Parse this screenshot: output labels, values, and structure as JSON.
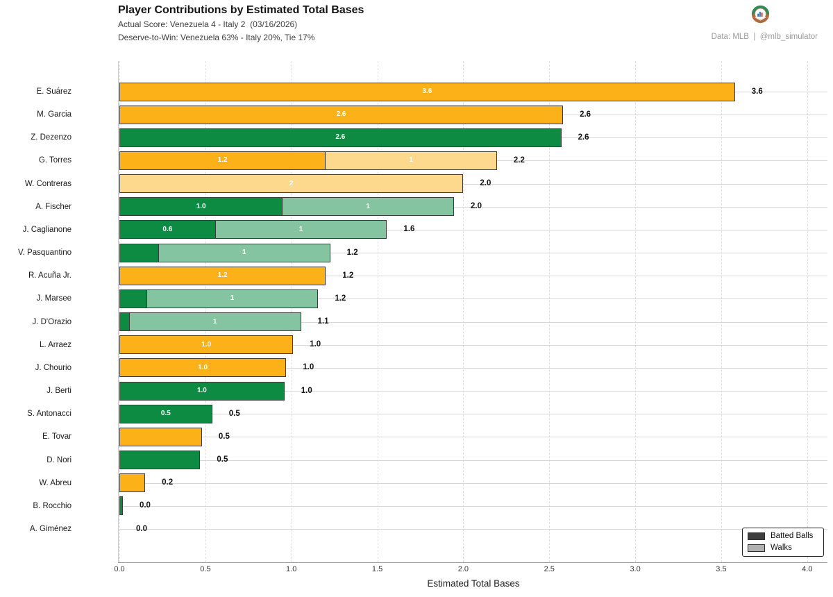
{
  "header": {
    "title": "Player Contributions by Estimated Total Bases",
    "subtitle1": "Actual Score: Venezuela 4 - Italy 2  (03/16/2026)",
    "subtitle2": "Deserve-to-Win: Venezuela 63% - Italy 20%, Tie 17%",
    "credit": "Data: MLB  |  @mlb_simulator"
  },
  "chart_data": {
    "type": "bar",
    "orientation": "horizontal",
    "title": "Player Contributions by Estimated Total Bases",
    "xlabel": "Estimated Total Bases",
    "xlim": [
      0,
      4.12
    ],
    "xticks": [
      "0.0",
      "0.5",
      "1.0",
      "1.5",
      "2.0",
      "2.5",
      "3.0",
      "3.5",
      "4.0"
    ],
    "grid": true,
    "legend_position": "lower right",
    "legend": {
      "items": [
        {
          "label": "Batted Balls",
          "swatch": "#3d3d3d"
        },
        {
          "label": "Walks",
          "swatch": "#b0b0b0"
        }
      ]
    },
    "team_colors": {
      "VEN": {
        "batted": "#FBB117",
        "walks": "#FCD98C"
      },
      "ITA": {
        "batted": "#0E8B43",
        "walks": "#85C4A1"
      }
    },
    "players": [
      {
        "name": "E. Suárez",
        "team": "VEN",
        "batted": 3.58,
        "walks": 0,
        "batted_label": "3.6",
        "walks_label": "",
        "total_label": "3.6"
      },
      {
        "name": "M. Garcia",
        "team": "VEN",
        "batted": 2.58,
        "walks": 0,
        "batted_label": "2.6",
        "walks_label": "",
        "total_label": "2.6"
      },
      {
        "name": "Z. Dezenzo",
        "team": "ITA",
        "batted": 2.57,
        "walks": 0,
        "batted_label": "2.6",
        "walks_label": "",
        "total_label": "2.6"
      },
      {
        "name": "G. Torres",
        "team": "VEN",
        "batted": 1.2,
        "walks": 1.0,
        "batted_label": "1.2",
        "walks_label": "1",
        "total_label": "2.2"
      },
      {
        "name": "W. Contreras",
        "team": "VEN",
        "batted": 0,
        "walks": 2.0,
        "batted_label": "",
        "walks_label": "2",
        "total_label": "2.0"
      },
      {
        "name": "A. Fischer",
        "team": "ITA",
        "batted": 0.95,
        "walks": 1.0,
        "batted_label": "1.0",
        "walks_label": "1",
        "total_label": "2.0"
      },
      {
        "name": "J. Caglianone",
        "team": "ITA",
        "batted": 0.56,
        "walks": 1.0,
        "batted_label": "0.6",
        "walks_label": "1",
        "total_label": "1.6"
      },
      {
        "name": "V. Pasquantino",
        "team": "ITA",
        "batted": 0.23,
        "walks": 1.0,
        "batted_label": "",
        "walks_label": "1",
        "total_label": "1.2"
      },
      {
        "name": "R. Acuña Jr.",
        "team": "VEN",
        "batted": 1.2,
        "walks": 0,
        "batted_label": "1.2",
        "walks_label": "",
        "total_label": "1.2"
      },
      {
        "name": "J. Marsee",
        "team": "ITA",
        "batted": 0.16,
        "walks": 1.0,
        "batted_label": "",
        "walks_label": "1",
        "total_label": "1.2"
      },
      {
        "name": "J. D'Orazio",
        "team": "ITA",
        "batted": 0.06,
        "walks": 1.0,
        "batted_label": "",
        "walks_label": "1",
        "total_label": "1.1"
      },
      {
        "name": "L. Arraez",
        "team": "VEN",
        "batted": 1.01,
        "walks": 0,
        "batted_label": "1.0",
        "walks_label": "",
        "total_label": "1.0"
      },
      {
        "name": "J. Chourio",
        "team": "VEN",
        "batted": 0.97,
        "walks": 0,
        "batted_label": "1.0",
        "walks_label": "",
        "total_label": "1.0"
      },
      {
        "name": "J. Berti",
        "team": "ITA",
        "batted": 0.96,
        "walks": 0,
        "batted_label": "1.0",
        "walks_label": "",
        "total_label": "1.0"
      },
      {
        "name": "S. Antonacci",
        "team": "ITA",
        "batted": 0.54,
        "walks": 0,
        "batted_label": "0.5",
        "walks_label": "",
        "total_label": "0.5"
      },
      {
        "name": "E. Tovar",
        "team": "VEN",
        "batted": 0.48,
        "walks": 0,
        "batted_label": "",
        "walks_label": "",
        "total_label": "0.5"
      },
      {
        "name": "D. Nori",
        "team": "ITA",
        "batted": 0.47,
        "walks": 0,
        "batted_label": "",
        "walks_label": "",
        "total_label": "0.5"
      },
      {
        "name": "W. Abreu",
        "team": "VEN",
        "batted": 0.15,
        "walks": 0,
        "batted_label": "",
        "walks_label": "",
        "total_label": "0.2"
      },
      {
        "name": "B. Rocchio",
        "team": "ITA",
        "batted": 0.02,
        "walks": 0,
        "batted_label": "",
        "walks_label": "",
        "total_label": "0.0"
      },
      {
        "name": "A. Giménez",
        "team": "VEN",
        "batted": 0,
        "walks": 0,
        "batted_label": "",
        "walks_label": "",
        "total_label": "0.0"
      }
    ]
  }
}
